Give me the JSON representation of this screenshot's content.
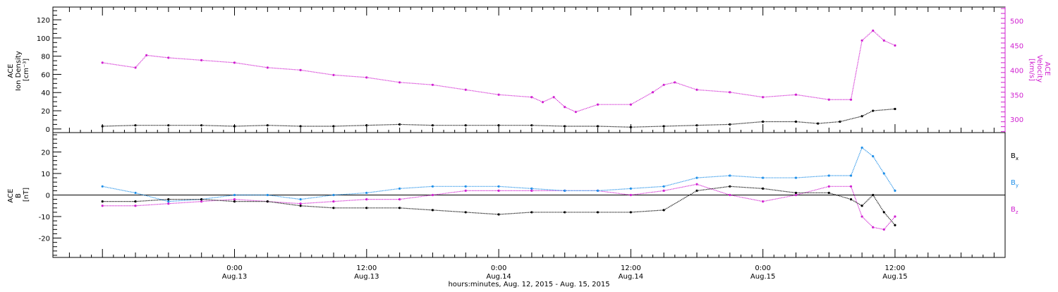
{
  "colors": {
    "black": "#000000",
    "magenta": "#d020d0",
    "blue": "#1f8fe8"
  },
  "chart_data": [
    {
      "type": "scatter",
      "panel": "top",
      "ylabel_lines": [
        "ACE",
        "Ion Density",
        "[cm⁻³]"
      ],
      "y2label_lines": [
        "ACE",
        "Velocity",
        "[km/s]"
      ],
      "ylim": [
        -4,
        134
      ],
      "y2lim": [
        273,
        528
      ],
      "yticks": [
        0,
        20,
        40,
        60,
        80,
        100,
        120
      ],
      "y2ticks": [
        300,
        350,
        400,
        450,
        500
      ],
      "series": [
        {
          "axis": "left",
          "color": "#000000",
          "x": [
            -12,
            -9,
            -6,
            -3,
            0,
            3,
            6,
            9,
            12,
            15,
            18,
            21,
            24,
            27,
            30,
            33,
            36,
            39,
            42,
            45,
            48,
            51,
            53,
            55,
            57,
            58,
            60
          ],
          "y": [
            3,
            4,
            4,
            4,
            3,
            4,
            3,
            3,
            4,
            5,
            4,
            4,
            4,
            4,
            3,
            3,
            2,
            3,
            4,
            5,
            8,
            8,
            6,
            8,
            14,
            20,
            22
          ]
        },
        {
          "axis": "right",
          "color": "#d020d0",
          "x": [
            -12,
            -9,
            -8,
            -6,
            -3,
            0,
            3,
            6,
            9,
            12,
            15,
            18,
            21,
            24,
            27,
            28,
            29,
            30,
            31,
            33,
            36,
            38,
            39,
            40,
            42,
            45,
            48,
            51,
            54,
            56,
            57,
            58,
            59,
            60
          ],
          "y": [
            415,
            405,
            430,
            425,
            420,
            415,
            405,
            400,
            390,
            385,
            375,
            370,
            360,
            350,
            345,
            335,
            345,
            325,
            315,
            330,
            330,
            355,
            370,
            375,
            360,
            355,
            345,
            350,
            340,
            340,
            460,
            480,
            460,
            450
          ]
        }
      ]
    },
    {
      "type": "scatter",
      "panel": "bottom",
      "ylabel_lines": [
        "ACE",
        "B",
        "[nT]"
      ],
      "ylim": [
        -29,
        29
      ],
      "yticks": [
        -20,
        -10,
        0,
        10,
        20
      ],
      "legend": [
        {
          "base": "B",
          "sub": "x",
          "color": "#000000"
        },
        {
          "base": "B",
          "sub": "y",
          "color": "#1f8fe8"
        },
        {
          "base": "B",
          "sub": "z",
          "color": "#d020d0"
        }
      ],
      "series": [
        {
          "name": "Bx",
          "color": "#000000",
          "x": [
            -12,
            -9,
            -6,
            -3,
            0,
            3,
            6,
            9,
            12,
            15,
            18,
            21,
            24,
            27,
            30,
            33,
            36,
            39,
            42,
            45,
            48,
            51,
            54,
            56,
            57,
            58,
            59,
            60
          ],
          "y": [
            -3,
            -3,
            -2,
            -2,
            -3,
            -3,
            -5,
            -6,
            -6,
            -6,
            -7,
            -8,
            -9,
            -8,
            -8,
            -8,
            -8,
            -7,
            2,
            4,
            3,
            1,
            1,
            -2,
            -5,
            0,
            -8,
            -14
          ]
        },
        {
          "name": "By",
          "color": "#1f8fe8",
          "x": [
            -12,
            -9,
            -6,
            -3,
            0,
            3,
            6,
            9,
            12,
            15,
            18,
            21,
            24,
            27,
            30,
            33,
            36,
            39,
            42,
            45,
            48,
            51,
            54,
            56,
            57,
            58,
            59,
            60
          ],
          "y": [
            4,
            1,
            -3,
            -2,
            0,
            0,
            -2,
            0,
            1,
            3,
            4,
            4,
            4,
            3,
            2,
            2,
            3,
            4,
            8,
            9,
            8,
            8,
            9,
            9,
            22,
            18,
            10,
            2
          ]
        },
        {
          "name": "Bz",
          "color": "#d020d0",
          "x": [
            -12,
            -9,
            -6,
            -3,
            0,
            3,
            6,
            9,
            12,
            15,
            18,
            21,
            24,
            27,
            30,
            33,
            36,
            39,
            42,
            45,
            48,
            51,
            54,
            56,
            57,
            58,
            59,
            60
          ],
          "y": [
            -5,
            -5,
            -4,
            -3,
            -2,
            -3,
            -4,
            -3,
            -2,
            -2,
            0,
            2,
            2,
            2,
            2,
            2,
            0,
            2,
            5,
            0,
            -3,
            0,
            4,
            4,
            -10,
            -15,
            -16,
            -10
          ]
        }
      ]
    }
  ],
  "x_axis": {
    "xlim": [
      -16.5,
      70
    ],
    "ticks": [
      {
        "x": 0,
        "time": "0:00",
        "date": "Aug.13"
      },
      {
        "x": 12,
        "time": "12:00",
        "date": "Aug.13"
      },
      {
        "x": 24,
        "time": "0:00",
        "date": "Aug.14"
      },
      {
        "x": 36,
        "time": "12:00",
        "date": "Aug.14"
      },
      {
        "x": 48,
        "time": "0:00",
        "date": "Aug.15"
      },
      {
        "x": 60,
        "time": "12:00",
        "date": "Aug.15"
      }
    ],
    "label": "hours:minutes, Aug. 12, 2015 - Aug. 15, 2015"
  }
}
